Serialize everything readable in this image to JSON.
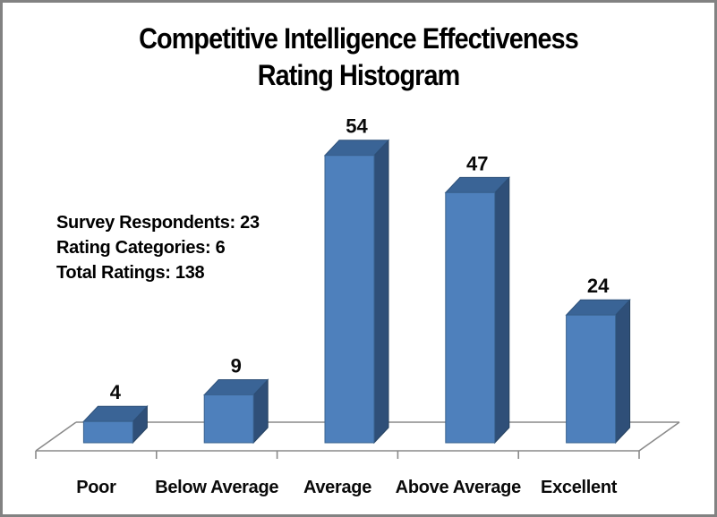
{
  "window": {
    "background": "#ffffff",
    "border_color": "#828282"
  },
  "title": {
    "line1": "Competitive Intelligence Effectiveness",
    "line2": "Rating Histogram"
  },
  "annotation": {
    "lines": [
      "Survey Respondents: 23",
      "Rating Categories: 6",
      "Total Ratings: 138"
    ]
  },
  "chart_data": {
    "type": "bar",
    "style": "3d-column",
    "title": "Competitive Intelligence Effectiveness Rating Histogram",
    "categories": [
      "Poor",
      "Below Average",
      "Average",
      "Above Average",
      "Excellent"
    ],
    "values": [
      4,
      9,
      54,
      47,
      24
    ],
    "data_labels": true,
    "legend": "none",
    "gridlines": false,
    "value_axis_visible": false,
    "xlabel": "",
    "ylabel": "",
    "colors": {
      "bar_front": "#4E80BC",
      "bar_top": "#3A6496",
      "bar_side": "#2F4F78",
      "bar_edge_front": "#3A6390",
      "bar_edge_top": "#2E5078",
      "bar_edge_side": "#26425F",
      "axis_line": "#8A8A8A",
      "label_text": "#0A0A0A"
    }
  }
}
